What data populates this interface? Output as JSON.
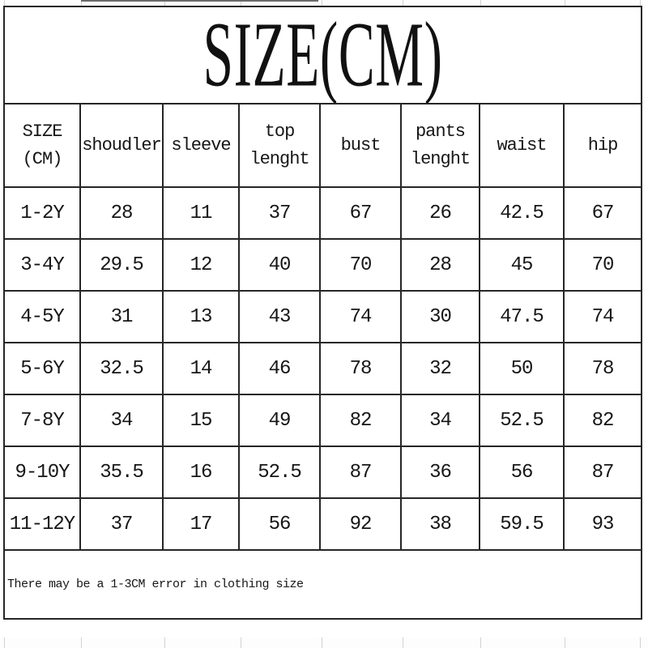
{
  "title": "SIZE(CM)",
  "table": {
    "header": [
      "SIZE\n(CM)",
      "shoudler",
      "sleeve",
      "top\nlenght",
      "bust",
      "pants\nlenght",
      "waist",
      "hip"
    ],
    "rows": [
      [
        "1-2Y",
        "28",
        "11",
        "37",
        "67",
        "26",
        "42.5",
        "67"
      ],
      [
        "3-4Y",
        "29.5",
        "12",
        "40",
        "70",
        "28",
        "45",
        "70"
      ],
      [
        "4-5Y",
        "31",
        "13",
        "43",
        "74",
        "30",
        "47.5",
        "74"
      ],
      [
        "5-6Y",
        "32.5",
        "14",
        "46",
        "78",
        "32",
        "50",
        "78"
      ],
      [
        "7-8Y",
        "34",
        "15",
        "49",
        "82",
        "34",
        "52.5",
        "82"
      ],
      [
        "9-10Y",
        "35.5",
        "16",
        "52.5",
        "87",
        "36",
        "56",
        "87"
      ],
      [
        "11-12Y",
        "37",
        "17",
        "56",
        "92",
        "38",
        "59.5",
        "93"
      ]
    ]
  },
  "footer_note": "There may be a 1-3CM error in clothing size",
  "colors": {
    "background": "#ffffff",
    "border": "#262626",
    "text": "#161616",
    "faint_grid": "#d2d2d2"
  }
}
